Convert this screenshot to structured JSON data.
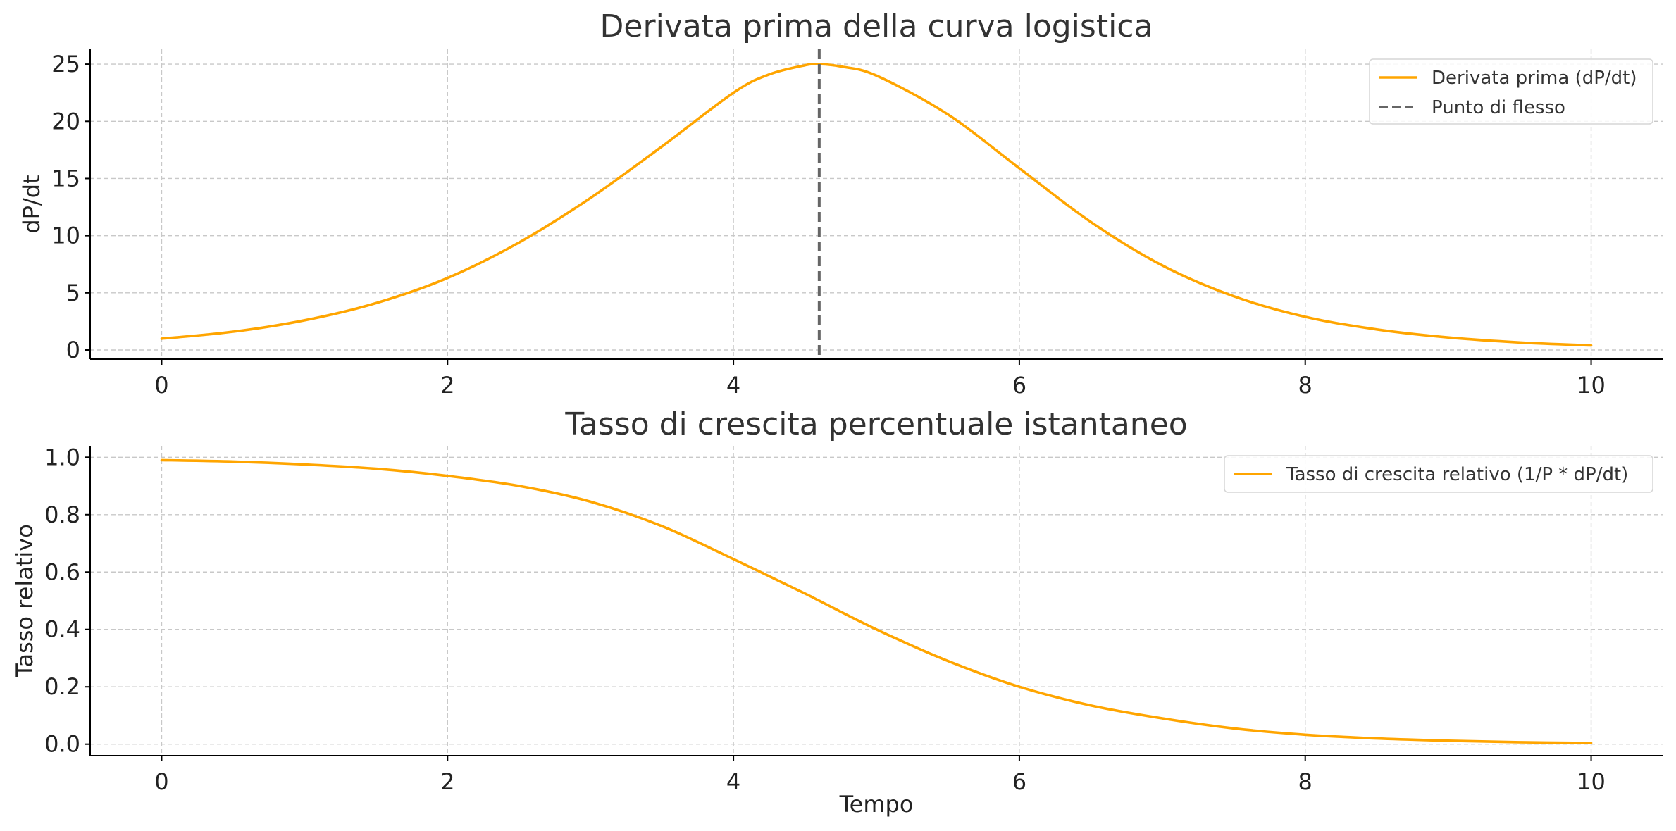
{
  "chart_data": [
    {
      "type": "line",
      "title": "Derivata prima della curva logistica",
      "xlabel": "",
      "ylabel": "dP/dt",
      "xlim": [
        -0.5,
        10.5
      ],
      "ylim": [
        -0.8,
        26.3
      ],
      "xticks": [
        0,
        2,
        4,
        6,
        8,
        10
      ],
      "yticks": [
        0,
        5,
        10,
        15,
        20,
        25
      ],
      "grid": true,
      "legend_position": "top-right",
      "series": [
        {
          "name": "Derivata prima (dP/dt)",
          "color": "#FFA500",
          "style": "solid",
          "x": [
            0,
            0.5,
            1,
            1.5,
            2,
            2.5,
            3,
            3.5,
            4,
            4.25,
            4.5,
            4.6,
            4.75,
            5,
            5.5,
            6,
            6.5,
            7,
            7.5,
            8,
            8.5,
            9,
            9.5,
            10
          ],
          "y": [
            0.99,
            1.6,
            2.6,
            4.1,
            6.3,
            9.4,
            13.3,
            17.8,
            22.5,
            24.1,
            24.9,
            25.0,
            24.8,
            24.0,
            20.6,
            15.9,
            11.2,
            7.4,
            4.7,
            2.9,
            1.8,
            1.1,
            0.66,
            0.4
          ]
        },
        {
          "name": "Punto di flesso",
          "color": "#666666",
          "style": "dashed",
          "type": "vline",
          "x": 4.6
        }
      ]
    },
    {
      "type": "line",
      "title": "Tasso di crescita percentuale istantaneo",
      "xlabel": "Tempo",
      "ylabel": "Tasso relativo",
      "xlim": [
        -0.5,
        10.5
      ],
      "ylim": [
        -0.04,
        1.04
      ],
      "xticks": [
        0,
        2,
        4,
        6,
        8,
        10
      ],
      "yticks": [
        0.0,
        0.2,
        0.4,
        0.6,
        0.8,
        1.0
      ],
      "ytick_labels": [
        "0.0",
        "0.2",
        "0.4",
        "0.6",
        "0.8",
        "1.0"
      ],
      "grid": true,
      "legend_position": "top-right",
      "series": [
        {
          "name": "Tasso di crescita relativo (1/P * dP/dt)",
          "color": "#FFA500",
          "style": "solid",
          "x": [
            0,
            0.5,
            1,
            1.5,
            2,
            2.5,
            3,
            3.5,
            4,
            4.5,
            4.6,
            5,
            5.5,
            6,
            6.5,
            7,
            7.5,
            8,
            8.5,
            9,
            9.5,
            10
          ],
          "y": [
            0.99,
            0.985,
            0.975,
            0.96,
            0.935,
            0.9,
            0.845,
            0.76,
            0.645,
            0.525,
            0.5,
            0.4,
            0.29,
            0.2,
            0.135,
            0.09,
            0.055,
            0.033,
            0.02,
            0.012,
            0.007,
            0.004
          ]
        }
      ]
    }
  ]
}
